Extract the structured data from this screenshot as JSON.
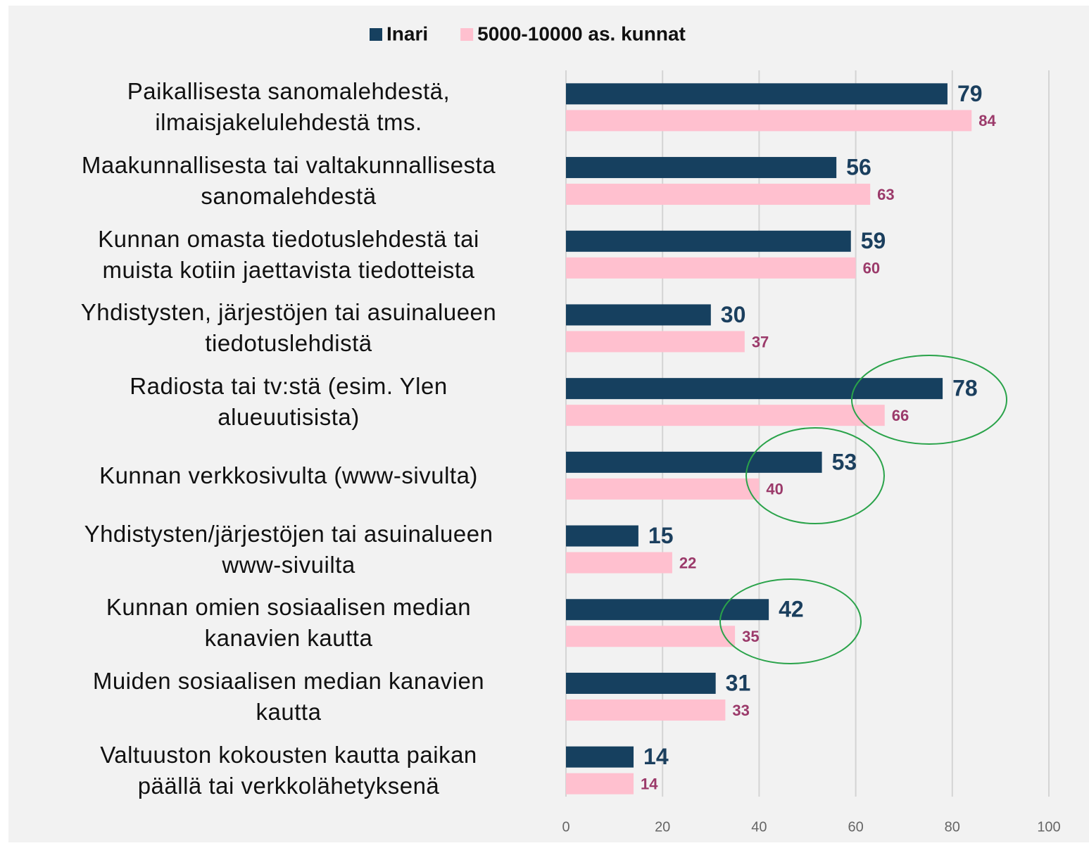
{
  "chart_data": {
    "type": "hbar",
    "categories": [
      "Paikallisesta sanomalehdestä,\nilmaisjakelulehdestä tms.",
      "Maakunnallisesta tai valtakunnallisesta\nsanomalehdestä",
      "Kunnan omasta tiedotuslehdestä tai\nmuista kotiin jaettavista tiedotteista",
      "Yhdistysten, järjestöjen tai asuinalueen\ntiedotuslehdistä",
      "Radiosta tai tv:stä (esim. Ylen\nalueuutisista)",
      "Kunnan verkkosivulta (www-sivulta)",
      "Yhdistysten/järjestöjen tai asuinalueen\nwww-sivuilta",
      "Kunnan omien sosiaalisen median\nkanavien kautta",
      "Muiden sosiaalisen median kanavien\nkautta",
      "Valtuuston kokousten kautta paikan\npäällä tai verkkolähetyksenä"
    ],
    "series": [
      {
        "name": "Inari",
        "color": "#16405f",
        "label_color": "#1b3f5e",
        "values": [
          79,
          56,
          59,
          30,
          78,
          53,
          15,
          42,
          31,
          14
        ]
      },
      {
        "name": "5000-10000 as. kunnat",
        "color": "#ffc0cf",
        "label_color": "#9b3a6a",
        "values": [
          84,
          63,
          60,
          37,
          66,
          40,
          22,
          35,
          33,
          14
        ]
      }
    ],
    "xlim": [
      0,
      100
    ],
    "xticks": [
      0,
      20,
      40,
      60,
      80,
      100
    ],
    "grid": true,
    "legend": "top"
  }
}
